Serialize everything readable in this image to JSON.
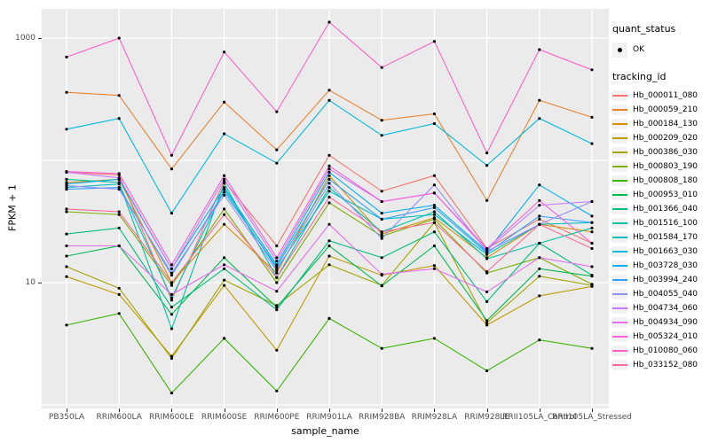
{
  "figure": {
    "y_axis_label": "FPKM + 1",
    "x_axis_label": "sample_name",
    "y_tick_labels": [
      {
        "value": 1000,
        "label": "1000"
      },
      {
        "value": 10,
        "label": "10"
      }
    ]
  },
  "legend": {
    "quant_status_title": "quant_status",
    "ok_label": "OK",
    "tracking_id_title": "tracking_id"
  },
  "colors": {
    "panel_bg": "#EBEBEB",
    "grid": "#FFFFFF",
    "legend_key_bg": "#F2F2F2",
    "point": "#000000",
    "axis_text": "#4D4D4D"
  },
  "chart_data": {
    "type": "line",
    "title": "",
    "xlabel": "sample_name",
    "ylabel": "FPKM + 1",
    "y_scale": "log10",
    "ylim": [
      0.9,
      1750
    ],
    "y_gridlines": [
      1,
      10,
      100,
      1000
    ],
    "grid": true,
    "legend_position": "right",
    "point_marker": "filled-circle",
    "categories": [
      "PB350LA",
      "RRIM600LA",
      "RRIM600LE",
      "RRIM600SE",
      "RRIM600PE",
      "RRIM901LA",
      "RRIM928BA",
      "RRIM928LA",
      "RRIM928LE",
      "RRII105LA_Control",
      "RRII105LA_Stressed"
    ],
    "series": [
      {
        "name": "Hb_000011_080",
        "color": "#F8766D",
        "values": [
          80,
          76,
          7.2,
          68,
          20,
          110,
          56,
          75,
          19,
          33,
          21
        ]
      },
      {
        "name": "Hb_000059_210",
        "color": "#EA8331",
        "values": [
          360,
          340,
          85,
          300,
          122,
          375,
          213,
          240,
          47,
          310,
          225
        ]
      },
      {
        "name": "Hb_000184_130",
        "color": "#D89000",
        "values": [
          66,
          70,
          10,
          30,
          12,
          75,
          25,
          34,
          16,
          30,
          26
        ]
      },
      {
        "name": "Hb_000209_020",
        "color": "#C09B00",
        "values": [
          11.2,
          8,
          2.5,
          9.5,
          2.8,
          16.5,
          11.5,
          13.8,
          4.5,
          7.8,
          9.3
        ]
      },
      {
        "name": "Hb_000386_030",
        "color": "#A3A500",
        "values": [
          13.5,
          9,
          2.4,
          10.5,
          6.5,
          14,
          9.5,
          31,
          4.7,
          11.3,
          9.5
        ]
      },
      {
        "name": "Hb_000803_190",
        "color": "#7CAE00",
        "values": [
          38,
          36,
          9.5,
          40,
          10,
          45,
          24,
          33,
          12,
          16,
          9.7
        ]
      },
      {
        "name": "Hb_000808_180",
        "color": "#39B600",
        "values": [
          4.5,
          5.6,
          1.25,
          3.5,
          1.3,
          5.1,
          2.9,
          3.5,
          1.9,
          3.4,
          2.9
        ]
      },
      {
        "name": "Hb_000953_010",
        "color": "#00BB4E",
        "values": [
          16.5,
          20,
          5.5,
          16,
          6.3,
          20,
          9.4,
          20,
          4.9,
          13,
          11.3
        ]
      },
      {
        "name": "Hb_001366_040",
        "color": "#00BF7D",
        "values": [
          25,
          28,
          6.3,
          13,
          6,
          22,
          16,
          26,
          7,
          21,
          11.5
        ]
      },
      {
        "name": "Hb_001516_100",
        "color": "#00C1A3",
        "values": [
          70,
          66,
          4.2,
          65,
          11,
          60,
          26,
          38,
          15.7,
          21,
          28
        ]
      },
      {
        "name": "Hb_001584_170",
        "color": "#00BFC4",
        "values": [
          60,
          64,
          7.5,
          58,
          13,
          56,
          33,
          36,
          17,
          30,
          31
        ]
      },
      {
        "name": "Hb_001663_030",
        "color": "#00BAE0",
        "values": [
          180,
          220,
          37,
          165,
          95,
          310,
          160,
          200,
          91,
          220,
          137
        ]
      },
      {
        "name": "Hb_003728_030",
        "color": "#00B0F6",
        "values": [
          64,
          70,
          13,
          60,
          14,
          80,
          37,
          43,
          18,
          63,
          35
        ]
      },
      {
        "name": "Hb_003994_240",
        "color": "#35A2FF",
        "values": [
          58,
          60,
          11.5,
          55,
          13.5,
          70,
          33,
          41,
          17.5,
          35,
          31
        ]
      },
      {
        "name": "Hb_004055_040",
        "color": "#9590FF",
        "values": [
          62,
          58,
          12,
          52,
          12.5,
          65,
          23,
          63,
          18,
          30,
          46
        ]
      },
      {
        "name": "Hb_004734_060",
        "color": "#C77CFF",
        "values": [
          80,
          72,
          13,
          70,
          15,
          85,
          46,
          54,
          18.5,
          43,
          46
        ]
      },
      {
        "name": "Hb_004934_090",
        "color": "#E76BF3",
        "values": [
          20,
          20,
          8,
          14,
          8.5,
          30,
          11.7,
          13,
          8.4,
          16,
          13.5
        ]
      },
      {
        "name": "Hb_005324_010",
        "color": "#FA62DB",
        "values": [
          81,
          78,
          14,
          75,
          16,
          90,
          46,
          54,
          19,
          47,
          21
        ]
      },
      {
        "name": "Hb_010080_060",
        "color": "#FF61CC",
        "values": [
          700,
          1000,
          110,
          770,
          250,
          1350,
          575,
          940,
          115,
          805,
          550
        ]
      },
      {
        "name": "Hb_033152_080",
        "color": "#FF6A98",
        "values": [
          40,
          38,
          10,
          36,
          11,
          50,
          26,
          31,
          12.3,
          30,
          19
        ]
      }
    ]
  }
}
